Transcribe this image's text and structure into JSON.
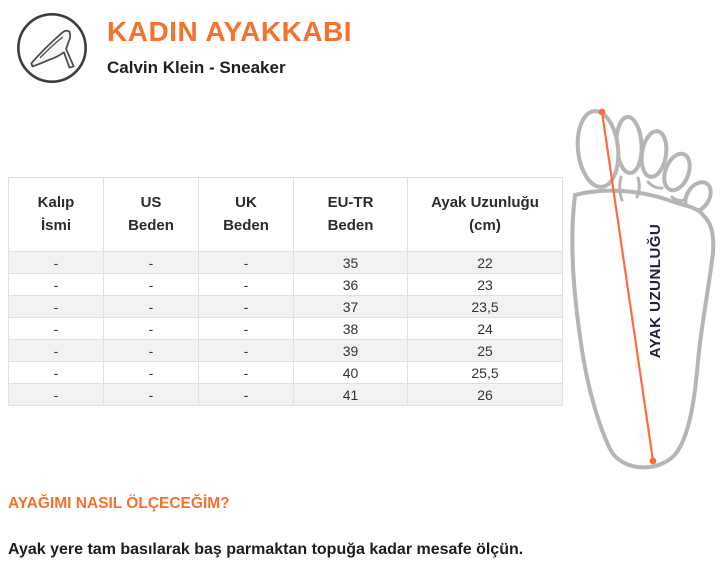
{
  "header": {
    "title": "KADIN AYAKKABI",
    "subtitle": "Calvin Klein - Sneaker",
    "icon": "high-heel-shoe-icon"
  },
  "size_table": {
    "columns": [
      "Kalıp\nİsmi",
      "US\nBeden",
      "UK\nBeden",
      "EU-TR\nBeden",
      "Ayak Uzunluğu\n(cm)"
    ],
    "rows": [
      [
        "-",
        "-",
        "-",
        "35",
        "22"
      ],
      [
        "-",
        "-",
        "-",
        "36",
        "23"
      ],
      [
        "-",
        "-",
        "-",
        "37",
        "23,5"
      ],
      [
        "-",
        "-",
        "-",
        "38",
        "24"
      ],
      [
        "-",
        "-",
        "-",
        "39",
        "25"
      ],
      [
        "-",
        "-",
        "-",
        "40",
        "25,5"
      ],
      [
        "-",
        "-",
        "-",
        "41",
        "26"
      ]
    ]
  },
  "foot_diagram": {
    "label": "AYAK UZUNLUĞU"
  },
  "footer": {
    "heading": "AYAĞIMI NASIL ÖLÇECEĞİM?",
    "body": "Ayak yere tam basılarak baş parmaktan topuğa kadar mesafe ölçün."
  },
  "colors": {
    "accent_orange": "#F7702C",
    "measure_line_orange": "#FA6E3E",
    "foot_outline_gray": "#B5B5B5",
    "table_stripe": "#F2F2F2",
    "table_border": "#E0E0E0",
    "text_dark": "#1F1F1F",
    "foot_label_dark": "#20203A"
  }
}
